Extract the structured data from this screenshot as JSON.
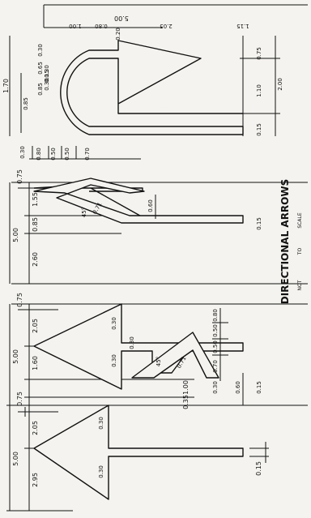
{
  "title": "DIRECTIONAL ARROWS",
  "note_not": "NOT",
  "note_to": "TO",
  "note_scale": "SCALE",
  "d1": {
    "overall": "5.00",
    "segments": [
      "2.05",
      "2.95"
    ],
    "head": "0.75",
    "shaft_stubs": [
      "0.30",
      "0.30"
    ],
    "shaft_width": "0.15"
  },
  "d2": {
    "overall": "5.00",
    "segments": [
      "2.05",
      "1.60",
      "1.00",
      "0.35"
    ],
    "head": "0.75",
    "stubs": [
      "0.30",
      "0.30",
      "0.30"
    ],
    "chevron_steps": [
      "0.80",
      "0.50",
      "0.50",
      "0.70"
    ],
    "chevron_height": "0.30",
    "angle": "45°",
    "slant": "0.71",
    "branch_len": "0.60",
    "shaft_width": "0.15"
  },
  "d3": {
    "overall": "5.00",
    "segments": [
      "1.55",
      "0.85",
      "2.60"
    ],
    "head": "0.75",
    "chevron_steps": [
      "0.80",
      "0.50",
      "0.50",
      "0.70"
    ],
    "chevron_height": "0.30",
    "angle": "45°",
    "slant": "0.71",
    "branch_len": "0.60",
    "shaft_width": "0.15"
  },
  "d4": {
    "overall": "5.00",
    "segments": [
      "2.05",
      "1.15"
    ],
    "top_steps": [
      "0.20",
      "0.80",
      "1.00"
    ],
    "left_width": "1.70",
    "left_steps": [
      "0.85",
      "0.85"
    ],
    "stack": [
      "0.30",
      "0.65",
      "0.30",
      "0.15",
      "0.30"
    ],
    "right_bottom": [
      "0.15",
      "1.10",
      "0.75"
    ],
    "right_total": "2.00"
  }
}
